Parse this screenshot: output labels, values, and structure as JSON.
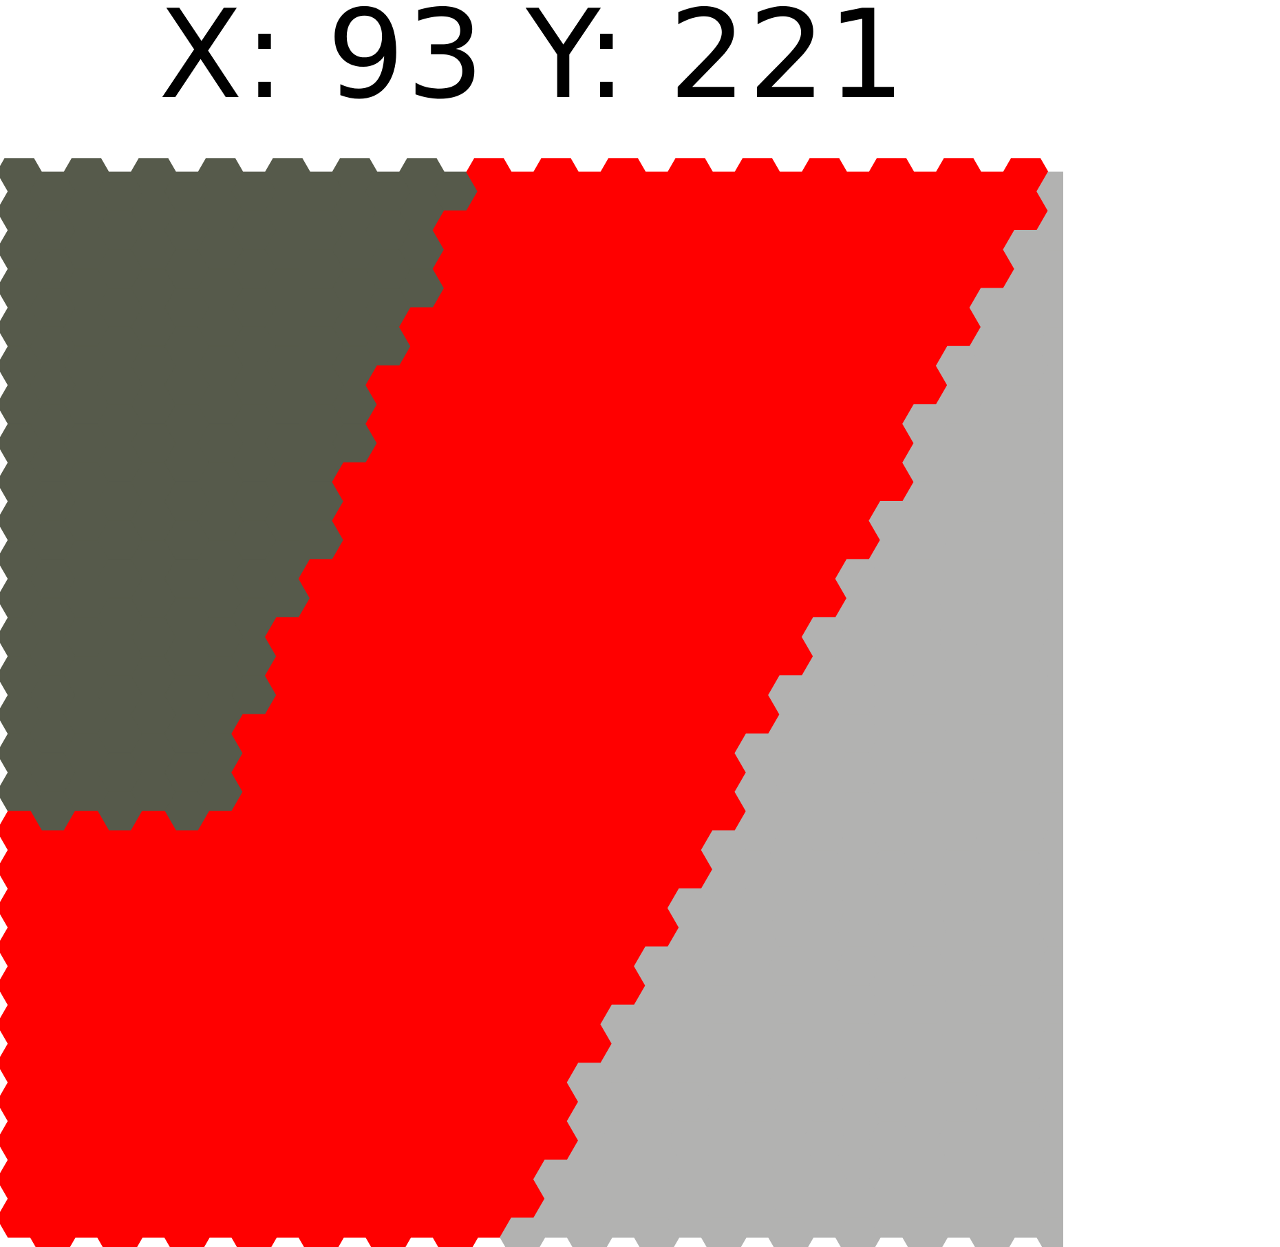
{
  "title": {
    "x_label": "X:",
    "x_value": "93",
    "y_label": "Y:",
    "y_value": "221"
  },
  "colors": {
    "dark_region": "#565a4b",
    "red_region": "#ff0000",
    "gray_region": "#b2b2b1",
    "background": "#ffffff"
  },
  "regions": [
    {
      "name": "dark-olive-region",
      "color_key": "dark_region"
    },
    {
      "name": "red-region",
      "color_key": "red_region"
    },
    {
      "name": "gray-region",
      "color_key": "gray_region"
    }
  ]
}
